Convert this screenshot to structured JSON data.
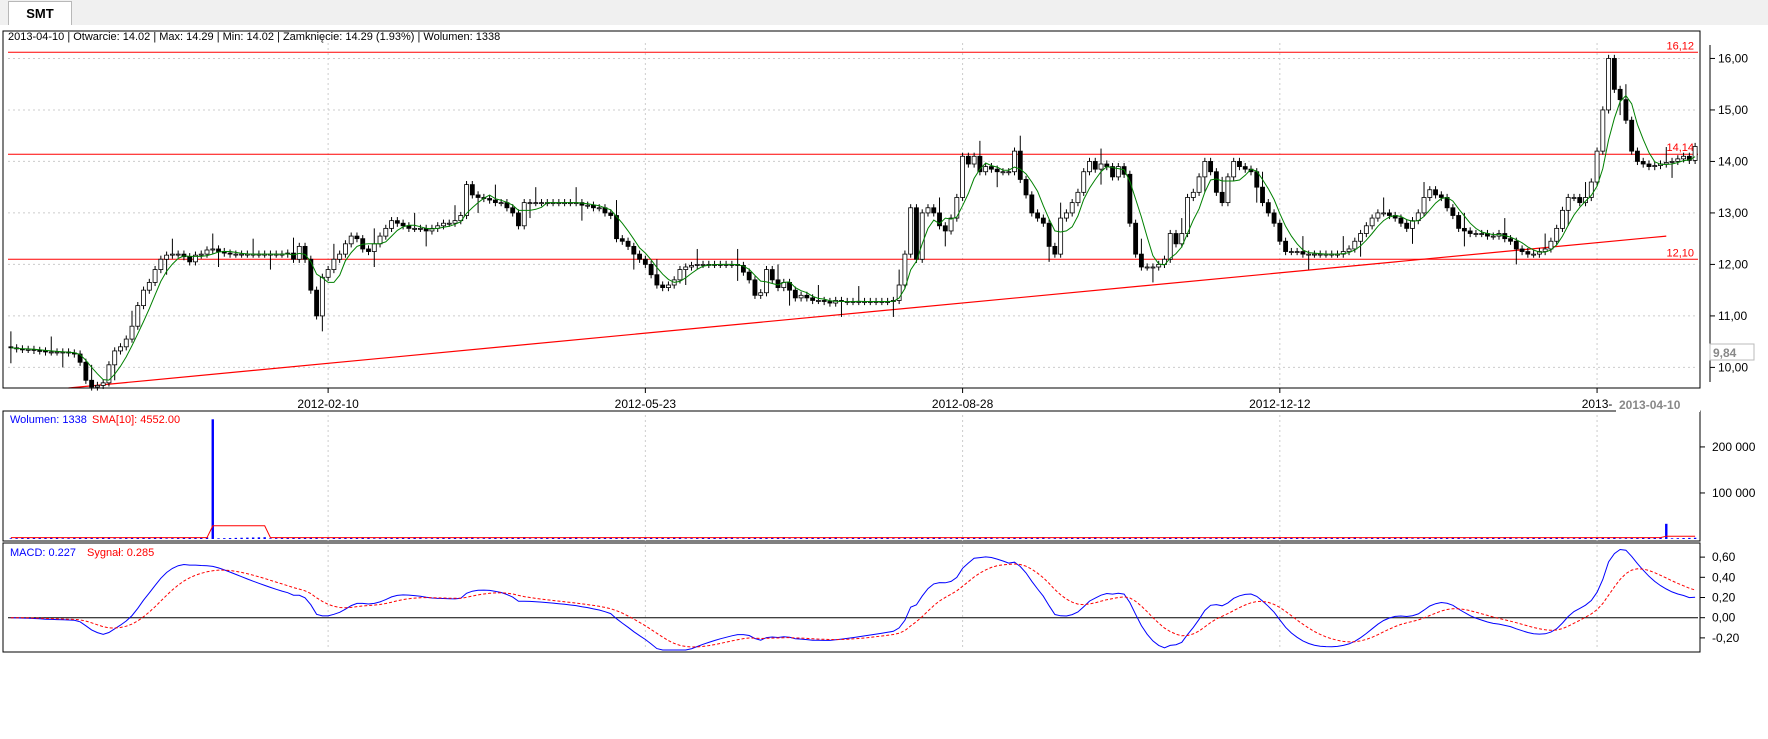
{
  "tab": {
    "label": "SMT"
  },
  "info_bar": "2013-04-10 | Otwarcie: 14.02 | Max: 14.29 | Min: 14.02 | Zamknięcie: 14.29 (1.93%)  | Wolumen: 1338",
  "price_panel": {
    "hlines": [
      {
        "value": 16.12,
        "label": "16,12"
      },
      {
        "value": 14.14,
        "label": "14,14"
      },
      {
        "value": 12.1,
        "label": "12,10"
      }
    ],
    "current_price_label": "9,84"
  },
  "volume_label": {
    "main": "Wolumen: 1338",
    "sma": "SMA[10]: 4552.00"
  },
  "macd_label": {
    "main": "MACD: 0.227",
    "signal": "Sygnał: 0.285"
  },
  "x_axis": {
    "cursor_label": "2013-04-10"
  },
  "colors": {
    "up": "#ffffff",
    "down": "#000000",
    "sma": "#008000",
    "hline": "#ff0000",
    "volume": "#0000ff",
    "volume_sma": "#ff0000",
    "macd": "#0000ff",
    "signal": "#ff0000"
  },
  "chart_data": [
    {
      "type": "candlestick",
      "ylim": [
        9.6,
        16.3
      ],
      "yticks": [
        "10,00",
        "11,00",
        "12,00",
        "13,00",
        "14,00",
        "15,00",
        "16,00"
      ],
      "ytick_values": [
        10,
        11,
        12,
        13,
        14,
        15,
        16
      ],
      "xticks": [
        "2012-02-10",
        "2012-05-23",
        "2012-08-28",
        "2012-12-12",
        "2013-"
      ],
      "xtick_index": [
        55,
        110,
        165,
        220,
        275
      ],
      "indicator": "SMA",
      "trendline": {
        "start": [
          10,
          9.6
        ],
        "end": [
          287,
          12.55
        ]
      },
      "close": [
        10.38,
        10.36,
        10.35,
        10.35,
        10.33,
        10.32,
        10.3,
        10.3,
        10.3,
        10.3,
        10.28,
        10.26,
        10.1,
        9.75,
        9.62,
        9.65,
        9.7,
        10.05,
        10.32,
        10.4,
        10.55,
        10.8,
        11.2,
        11.5,
        11.65,
        11.9,
        12.1,
        12.18,
        12.2,
        12.2,
        12.15,
        12.05,
        12.18,
        12.2,
        12.28,
        12.3,
        12.25,
        12.22,
        12.2,
        12.2,
        12.2,
        12.2,
        12.2,
        12.2,
        12.2,
        12.2,
        12.2,
        12.2,
        12.22,
        12.1,
        12.35,
        12.1,
        11.5,
        11.0,
        11.75,
        11.9,
        12.1,
        12.2,
        12.4,
        12.55,
        12.5,
        12.3,
        12.25,
        12.4,
        12.55,
        12.7,
        12.85,
        12.8,
        12.75,
        12.7,
        12.7,
        12.7,
        12.65,
        12.7,
        12.75,
        12.8,
        12.8,
        12.85,
        12.95,
        13.55,
        13.35,
        13.3,
        13.28,
        13.25,
        13.2,
        13.2,
        13.1,
        13.0,
        12.75,
        13.2,
        13.2,
        13.2,
        13.2,
        13.2,
        13.2,
        13.2,
        13.2,
        13.2,
        13.2,
        13.15,
        13.15,
        13.1,
        13.1,
        13.0,
        12.95,
        12.5,
        12.45,
        12.35,
        12.2,
        12.1,
        12.0,
        11.8,
        11.6,
        11.55,
        11.6,
        11.7,
        11.9,
        11.95,
        11.98,
        12.0,
        12.0,
        12.0,
        12.0,
        12.0,
        12.0,
        12.0,
        11.98,
        11.85,
        11.7,
        11.4,
        11.45,
        11.9,
        11.7,
        11.55,
        11.65,
        11.5,
        11.35,
        11.4,
        11.35,
        11.3,
        11.3,
        11.28,
        11.25,
        11.3,
        11.28,
        11.28,
        11.28,
        11.28,
        11.28,
        11.28,
        11.28,
        11.28,
        11.28,
        11.3,
        11.6,
        12.2,
        13.1,
        12.1,
        13.0,
        13.1,
        13.0,
        12.75,
        12.65,
        12.9,
        13.3,
        14.1,
        13.95,
        14.1,
        13.8,
        13.9,
        13.85,
        13.8,
        13.8,
        13.8,
        14.2,
        13.65,
        13.35,
        13.0,
        12.9,
        12.8,
        12.35,
        12.2,
        12.9,
        13.0,
        13.2,
        13.4,
        13.8,
        14.0,
        13.85,
        13.95,
        13.9,
        13.7,
        13.9,
        13.75,
        12.8,
        12.2,
        11.95,
        11.95,
        11.95,
        12.0,
        12.1,
        12.6,
        12.4,
        12.6,
        13.3,
        13.4,
        13.7,
        14.0,
        13.8,
        13.4,
        13.2,
        13.7,
        14.0,
        13.9,
        13.85,
        13.8,
        13.5,
        13.2,
        13.0,
        12.8,
        12.45,
        12.25,
        12.25,
        12.25,
        12.2,
        12.2,
        12.2,
        12.2,
        12.2,
        12.2,
        12.2,
        12.25,
        12.3,
        12.45,
        12.6,
        12.75,
        12.9,
        13.0,
        13.0,
        12.95,
        12.9,
        12.8,
        12.7,
        12.85,
        13.0,
        13.3,
        13.45,
        13.35,
        13.3,
        13.1,
        12.95,
        12.7,
        12.65,
        12.6,
        12.6,
        12.6,
        12.55,
        12.55,
        12.6,
        12.5,
        12.45,
        12.3,
        12.25,
        12.2,
        12.2,
        12.25,
        12.3,
        12.45,
        12.7,
        13.05,
        13.3,
        13.3,
        13.2,
        13.3,
        13.6,
        14.2,
        15.0,
        16.0,
        15.4,
        15.2,
        14.8,
        14.2,
        14.0,
        13.95,
        13.9,
        13.92,
        13.95,
        13.98,
        14.0,
        14.05,
        14.1,
        14.02,
        14.29
      ],
      "volume_note": "spike near 2012-01-10 ~260000; second spike 2013-03 ~33000",
      "volume_ticks": [
        "100 000",
        "200 000"
      ],
      "volume_tick_values": [
        100000,
        200000
      ],
      "volume_ylim": [
        0,
        265000
      ],
      "volume_spikes": [
        {
          "index": 35,
          "value": 260000
        },
        {
          "index": 287,
          "value": 33000
        }
      ],
      "macd_ticks": [
        "-0,20",
        "0,00",
        "0,20",
        "0,40",
        "0,60"
      ],
      "macd_tick_values": [
        -0.2,
        0.0,
        0.2,
        0.4,
        0.6
      ],
      "macd_ylim": [
        -0.32,
        0.72
      ]
    }
  ]
}
